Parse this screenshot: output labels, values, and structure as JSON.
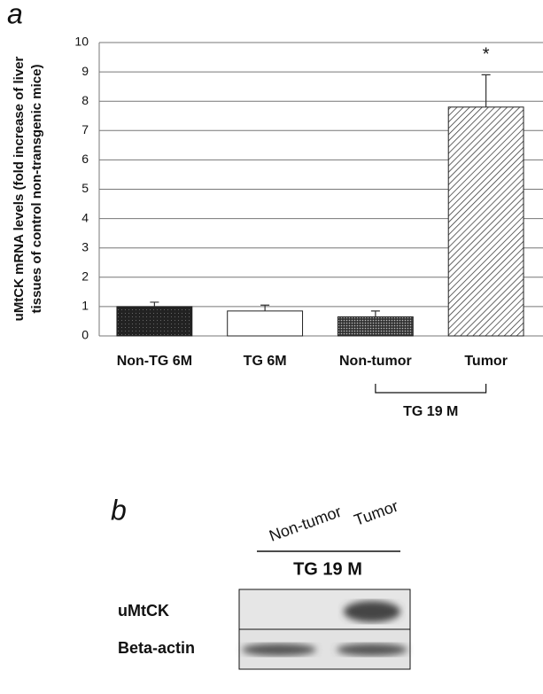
{
  "chart_data": {
    "type": "bar",
    "panel_label": "a",
    "ylabel": [
      "uMtCK mRNA levels  (fold increase of liver",
      "tissues of control non-transgenic mice)"
    ],
    "categories": [
      "Non-TG 6M",
      "TG 6M",
      "Non-tumor",
      "Tumor"
    ],
    "values": [
      1.0,
      0.85,
      0.65,
      7.8
    ],
    "errors": [
      0.15,
      0.2,
      0.2,
      1.1
    ],
    "annotation": "*",
    "group_label": "TG 19 M",
    "ylim": [
      0,
      10
    ],
    "yticks": [
      0,
      1,
      2,
      3,
      4,
      5,
      6,
      7,
      8,
      9,
      10
    ],
    "grid": true
  },
  "blot": {
    "panel_label": "b",
    "lanes": [
      "Non-tumor",
      "Tumor"
    ],
    "group_label": "TG 19 M",
    "rows": [
      "uMtCK",
      "Beta-actin"
    ]
  }
}
